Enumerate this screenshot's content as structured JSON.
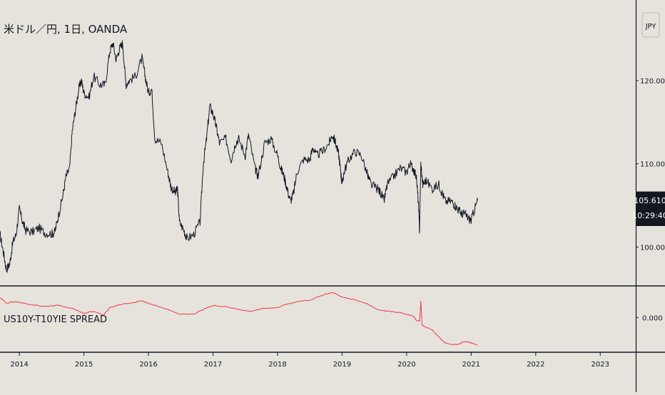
{
  "chart_data": [
    {
      "type": "line",
      "title": "米ドル／円, 1日, OANDA",
      "currency_button": "JPY",
      "price_badge": "105.610",
      "countdown_badge": "10:29:40",
      "series": [
        {
          "color": "#131722",
          "points": [
            [
              2013.7,
              101.5
            ],
            [
              2013.75,
              99.5
            ],
            [
              2013.8,
              97.3
            ],
            [
              2013.85,
              98.0
            ],
            [
              2013.9,
              100.6
            ],
            [
              2013.95,
              101.5
            ],
            [
              2014.0,
              104.6
            ],
            [
              2014.05,
              103.0
            ],
            [
              2014.1,
              102.0
            ],
            [
              2014.2,
              101.8
            ],
            [
              2014.3,
              102.3
            ],
            [
              2014.4,
              101.7
            ],
            [
              2014.5,
              101.6
            ],
            [
              2014.55,
              101.8
            ],
            [
              2014.6,
              103.6
            ],
            [
              2014.67,
              106.0
            ],
            [
              2014.72,
              108.4
            ],
            [
              2014.78,
              109.5
            ],
            [
              2014.82,
              114.0
            ],
            [
              2014.87,
              116.5
            ],
            [
              2014.92,
              119.0
            ],
            [
              2014.96,
              120.0
            ],
            [
              2015.0,
              118.5
            ],
            [
              2015.08,
              118.0
            ],
            [
              2015.15,
              120.5
            ],
            [
              2015.25,
              119.5
            ],
            [
              2015.33,
              119.5
            ],
            [
              2015.4,
              123.5
            ],
            [
              2015.45,
              124.5
            ],
            [
              2015.5,
              122.5
            ],
            [
              2015.55,
              123.8
            ],
            [
              2015.6,
              124.5
            ],
            [
              2015.65,
              119.5
            ],
            [
              2015.7,
              120.0
            ],
            [
              2015.8,
              120.5
            ],
            [
              2015.9,
              122.7
            ],
            [
              2015.95,
              120.5
            ],
            [
              2016.0,
              118.5
            ],
            [
              2016.05,
              119.0
            ],
            [
              2016.1,
              113.0
            ],
            [
              2016.2,
              112.5
            ],
            [
              2016.3,
              109.0
            ],
            [
              2016.35,
              107.2
            ],
            [
              2016.42,
              106.5
            ],
            [
              2016.45,
              107.0
            ],
            [
              2016.48,
              103.0
            ],
            [
              2016.55,
              102.0
            ],
            [
              2016.6,
              101.0
            ],
            [
              2016.7,
              101.5
            ],
            [
              2016.8,
              103.0
            ],
            [
              2016.85,
              110.0
            ],
            [
              2016.9,
              113.0
            ],
            [
              2016.95,
              117.0
            ],
            [
              2017.0,
              116.0
            ],
            [
              2017.05,
              114.5
            ],
            [
              2017.1,
              112.5
            ],
            [
              2017.2,
              113.0
            ],
            [
              2017.28,
              110.5
            ],
            [
              2017.35,
              112.5
            ],
            [
              2017.4,
              113.0
            ],
            [
              2017.5,
              111.0
            ],
            [
              2017.55,
              113.5
            ],
            [
              2017.65,
              109.5
            ],
            [
              2017.7,
              108.5
            ],
            [
              2017.8,
              112.5
            ],
            [
              2017.9,
              113.0
            ],
            [
              2018.0,
              111.0
            ],
            [
              2018.05,
              109.5
            ],
            [
              2018.1,
              108.5
            ],
            [
              2018.15,
              107.0
            ],
            [
              2018.2,
              105.5
            ],
            [
              2018.25,
              106.5
            ],
            [
              2018.3,
              109.0
            ],
            [
              2018.4,
              110.5
            ],
            [
              2018.5,
              110.5
            ],
            [
              2018.55,
              112.0
            ],
            [
              2018.6,
              111.0
            ],
            [
              2018.7,
              111.5
            ],
            [
              2018.8,
              112.5
            ],
            [
              2018.85,
              113.5
            ],
            [
              2018.9,
              112.5
            ],
            [
              2018.95,
              111.0
            ],
            [
              2018.98,
              109.0
            ],
            [
              2019.0,
              107.5
            ],
            [
              2019.03,
              109.0
            ],
            [
              2019.1,
              110.5
            ],
            [
              2019.2,
              111.5
            ],
            [
              2019.3,
              111.0
            ],
            [
              2019.4,
              108.5
            ],
            [
              2019.45,
              107.5
            ],
            [
              2019.55,
              107.0
            ],
            [
              2019.6,
              106.5
            ],
            [
              2019.65,
              105.5
            ],
            [
              2019.7,
              107.5
            ],
            [
              2019.8,
              108.5
            ],
            [
              2019.9,
              109.5
            ],
            [
              2020.0,
              109.0
            ],
            [
              2020.05,
              110.0
            ],
            [
              2020.1,
              109.5
            ],
            [
              2020.15,
              108.5
            ],
            [
              2020.18,
              105.5
            ],
            [
              2020.2,
              102.0
            ],
            [
              2020.22,
              110.0
            ],
            [
              2020.25,
              107.5
            ],
            [
              2020.3,
              108.0
            ],
            [
              2020.4,
              107.0
            ],
            [
              2020.5,
              107.5
            ],
            [
              2020.55,
              106.5
            ],
            [
              2020.6,
              105.5
            ],
            [
              2020.7,
              105.5
            ],
            [
              2020.75,
              105.0
            ],
            [
              2020.8,
              104.5
            ],
            [
              2020.85,
              104.0
            ],
            [
              2020.9,
              104.0
            ],
            [
              2020.95,
              103.5
            ],
            [
              2021.0,
              103.2
            ],
            [
              2021.05,
              104.5
            ],
            [
              2021.1,
              105.6
            ]
          ]
        }
      ],
      "y_ticks": [
        "100.000",
        "110.000",
        "120.000"
      ],
      "y_tick_values": [
        100,
        110,
        120
      ],
      "ylim": [
        95.5,
        129.5
      ],
      "grid": false
    },
    {
      "type": "line",
      "title": "US10Y-T10YIE SPREAD",
      "series": [
        {
          "color": "#f23645",
          "points": [
            [
              2013.7,
              0.25
            ],
            [
              2013.8,
              0.18
            ],
            [
              2013.9,
              0.2
            ],
            [
              2014.0,
              0.19
            ],
            [
              2014.2,
              0.16
            ],
            [
              2014.4,
              0.14
            ],
            [
              2014.6,
              0.15
            ],
            [
              2014.8,
              0.12
            ],
            [
              2014.9,
              0.09
            ],
            [
              2015.0,
              0.05
            ],
            [
              2015.1,
              0.08
            ],
            [
              2015.2,
              0.06
            ],
            [
              2015.3,
              0.03
            ],
            [
              2015.4,
              0.12
            ],
            [
              2015.5,
              0.15
            ],
            [
              2015.7,
              0.18
            ],
            [
              2015.9,
              0.21
            ],
            [
              2016.0,
              0.18
            ],
            [
              2016.1,
              0.15
            ],
            [
              2016.3,
              0.1
            ],
            [
              2016.5,
              0.04
            ],
            [
              2016.7,
              0.04
            ],
            [
              2016.9,
              0.12
            ],
            [
              2017.0,
              0.15
            ],
            [
              2017.2,
              0.14
            ],
            [
              2017.4,
              0.1
            ],
            [
              2017.6,
              0.08
            ],
            [
              2017.8,
              0.12
            ],
            [
              2018.0,
              0.12
            ],
            [
              2018.1,
              0.16
            ],
            [
              2018.3,
              0.2
            ],
            [
              2018.5,
              0.22
            ],
            [
              2018.7,
              0.28
            ],
            [
              2018.85,
              0.32
            ],
            [
              2019.0,
              0.26
            ],
            [
              2019.2,
              0.22
            ],
            [
              2019.4,
              0.17
            ],
            [
              2019.55,
              0.1
            ],
            [
              2019.7,
              0.08
            ],
            [
              2019.9,
              0.06
            ],
            [
              2020.1,
              0.02
            ],
            [
              2020.15,
              -0.03
            ],
            [
              2020.2,
              -0.05
            ],
            [
              2020.22,
              0.2
            ],
            [
              2020.24,
              -0.1
            ],
            [
              2020.3,
              -0.12
            ],
            [
              2020.4,
              -0.16
            ],
            [
              2020.5,
              -0.25
            ],
            [
              2020.6,
              -0.32
            ],
            [
              2020.7,
              -0.34
            ],
            [
              2020.8,
              -0.34
            ],
            [
              2020.9,
              -0.3
            ],
            [
              2021.0,
              -0.32
            ],
            [
              2021.1,
              -0.35
            ]
          ]
        }
      ],
      "y_ticks": [
        "0.000"
      ],
      "y_tick_values": [
        0
      ],
      "ylim": [
        -0.42,
        0.38
      ]
    }
  ],
  "x_axis": {
    "ticks": [
      "2014",
      "2015",
      "2016",
      "2017",
      "2018",
      "2019",
      "2020",
      "2021",
      "2022",
      "2023"
    ],
    "tick_values": [
      2014,
      2015,
      2016,
      2017,
      2018,
      2019,
      2020,
      2021,
      2022,
      2023
    ],
    "range": [
      2013.7,
      2023.55
    ]
  }
}
